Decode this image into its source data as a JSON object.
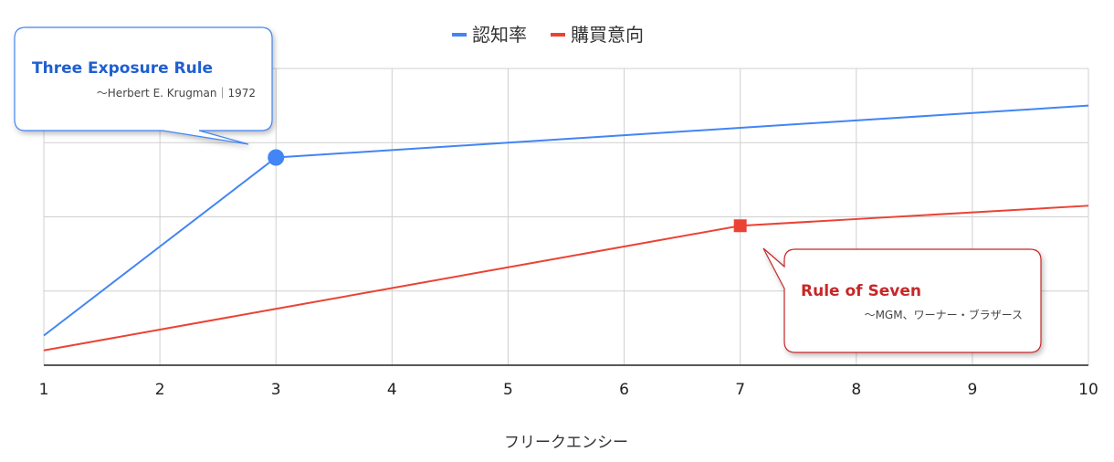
{
  "chart_data": {
    "type": "line",
    "x": [
      1,
      2,
      3,
      4,
      5,
      6,
      7,
      8,
      9,
      10
    ],
    "xlabel": "フリークエンシー",
    "ylabel": "",
    "xlim": [
      1,
      10
    ],
    "ylim": [
      0,
      4
    ],
    "grid": true,
    "legend_position": "top-center",
    "series": [
      {
        "name": "認知率",
        "color": "#4285f4",
        "values": [
          0.4,
          1.6,
          2.8,
          2.9,
          3.0,
          3.1,
          3.2,
          3.3,
          3.4,
          3.5
        ],
        "highlight_index": 2,
        "marker": "circle"
      },
      {
        "name": "購買意向",
        "color": "#ea4335",
        "values": [
          0.2,
          0.48,
          0.76,
          1.04,
          1.32,
          1.6,
          1.88,
          1.97,
          2.06,
          2.15
        ],
        "highlight_index": 6,
        "marker": "square"
      }
    ],
    "annotations": [
      {
        "title": "Three Exposure Rule",
        "subtitle": "〜Herbert E. Krugman｜1972",
        "color": "#1f5fd0",
        "x": 3,
        "series": 0
      },
      {
        "title": "Rule of Seven",
        "subtitle": "〜MGM、ワーナー・ブラザース",
        "color": "#c62828",
        "x": 7,
        "series": 1
      }
    ]
  }
}
